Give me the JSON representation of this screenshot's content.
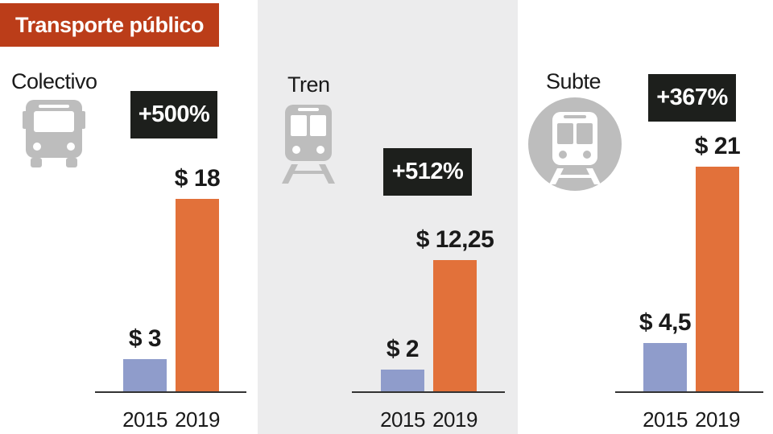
{
  "title": "Transporte público",
  "colors": {
    "title_bg": "#bb3d19",
    "tren_panel_bg": "#ececed",
    "bar_2015": "#8f9ccb",
    "bar_2019": "#e2713a",
    "badge_bg": "#1d1f1c",
    "icon_gray": "#bdbdbd"
  },
  "panels": [
    {
      "label": "Colectivo",
      "icon": "bus-icon",
      "change": "+500%"
    },
    {
      "label": "Tren",
      "icon": "train-icon",
      "change": "+512%"
    },
    {
      "label": "Subte",
      "icon": "subway-icon",
      "change": "+367%"
    }
  ],
  "chart_data": [
    {
      "type": "bar",
      "title": "Colectivo",
      "categories": [
        "2015",
        "2019"
      ],
      "values": [
        3,
        18
      ],
      "data_labels": [
        "$ 3",
        "$ 18"
      ],
      "annotation": "+500%",
      "ylim": [
        0,
        21
      ]
    },
    {
      "type": "bar",
      "title": "Tren",
      "categories": [
        "2015",
        "2019"
      ],
      "values": [
        2,
        12.25
      ],
      "data_labels": [
        "$ 2",
        "$ 12,25"
      ],
      "annotation": "+512%",
      "ylim": [
        0,
        21
      ]
    },
    {
      "type": "bar",
      "title": "Subte",
      "categories": [
        "2015",
        "2019"
      ],
      "values": [
        4.5,
        21
      ],
      "data_labels": [
        "$ 4,5",
        "$ 21"
      ],
      "annotation": "+367%",
      "ylim": [
        0,
        21
      ]
    }
  ]
}
